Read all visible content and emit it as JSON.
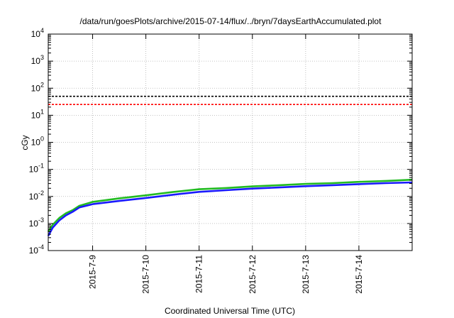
{
  "chart_data": {
    "type": "line",
    "title": "/data/run/goesPlots/archive/2015-07-14/flux/../bryn/7daysEarthAccumulated.plot",
    "xlabel": "Coordinated Universal Time (UTC)",
    "ylabel": "cGy",
    "yscale": "log",
    "ylim": [
      0.0001,
      10000
    ],
    "xlim": [
      "2015-07-08 04:00",
      "2015-07-15 00:00"
    ],
    "grid": true,
    "y_ticks": [
      {
        "base": "10",
        "exp": "-4"
      },
      {
        "base": "10",
        "exp": "-3"
      },
      {
        "base": "10",
        "exp": "-2"
      },
      {
        "base": "10",
        "exp": "-1"
      },
      {
        "base": "10",
        "exp": "0"
      },
      {
        "base": "10",
        "exp": "1"
      },
      {
        "base": "10",
        "exp": "2"
      },
      {
        "base": "10",
        "exp": "3"
      },
      {
        "base": "10",
        "exp": "4"
      }
    ],
    "x_ticks": [
      "2015-7-9",
      "2015-7-10",
      "2015-7-11",
      "2015-7-12",
      "2015-7-13",
      "2015-7-14"
    ],
    "reference_lines": [
      {
        "value": 50,
        "color": "#000000",
        "style": "dashed"
      },
      {
        "value": 25,
        "color": "#ff0000",
        "style": "dashed"
      }
    ],
    "series": [
      {
        "color": "#22bb22",
        "x": [
          "2015-07-08 04:00",
          "2015-07-08 06:00",
          "2015-07-08 09:00",
          "2015-07-08 12:00",
          "2015-07-08 15:00",
          "2015-07-08 18:00",
          "2015-07-09 00:00",
          "2015-07-09 12:00",
          "2015-07-10 00:00",
          "2015-07-10 12:00",
          "2015-07-11 00:00",
          "2015-07-11 12:00",
          "2015-07-12 00:00",
          "2015-07-12 12:00",
          "2015-07-13 00:00",
          "2015-07-13 12:00",
          "2015-07-14 00:00",
          "2015-07-14 12:00",
          "2015-07-15 00:00"
        ],
        "y": [
          0.0005,
          0.0009,
          0.0016,
          0.0024,
          0.0031,
          0.0045,
          0.0063,
          0.0085,
          0.011,
          0.0145,
          0.0185,
          0.0205,
          0.0235,
          0.026,
          0.029,
          0.031,
          0.0345,
          0.0375,
          0.0415
        ]
      },
      {
        "color": "#1a1aff",
        "x": [
          "2015-07-08 04:00",
          "2015-07-08 06:00",
          "2015-07-08 09:00",
          "2015-07-08 12:00",
          "2015-07-08 15:00",
          "2015-07-08 18:00",
          "2015-07-09 00:00",
          "2015-07-09 12:00",
          "2015-07-10 00:00",
          "2015-07-10 12:00",
          "2015-07-11 00:00",
          "2015-07-11 12:00",
          "2015-07-12 00:00",
          "2015-07-12 12:00",
          "2015-07-13 00:00",
          "2015-07-13 12:00",
          "2015-07-14 00:00",
          "2015-07-14 12:00",
          "2015-07-15 00:00"
        ],
        "y": [
          0.00035,
          0.0007,
          0.0013,
          0.002,
          0.0027,
          0.0039,
          0.0052,
          0.0068,
          0.0088,
          0.0115,
          0.0148,
          0.017,
          0.0195,
          0.0215,
          0.024,
          0.026,
          0.0285,
          0.031,
          0.033
        ]
      }
    ]
  }
}
